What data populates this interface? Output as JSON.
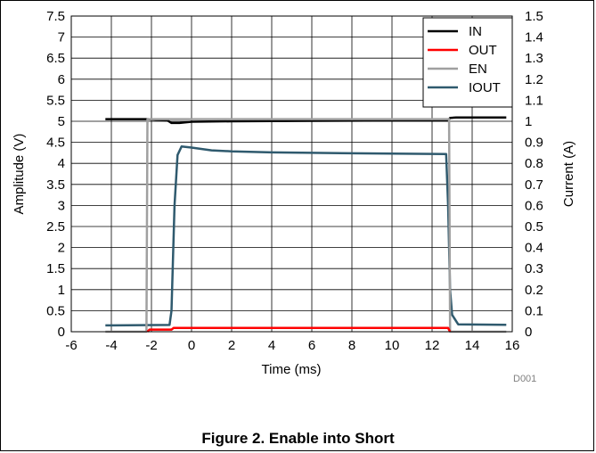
{
  "caption": "Figure 2. Enable into Short",
  "chart_data": {
    "type": "line",
    "figure_id": "D001",
    "xlabel": "Time (ms)",
    "ylabel_left": "Amplitude (V)",
    "ylabel_right": "Current (A)",
    "xlim": [
      -6,
      16
    ],
    "ylim_left": [
      0,
      7.5
    ],
    "ylim_right": [
      0,
      1.5
    ],
    "x_ticks": [
      "-6",
      "-4",
      "-2",
      "0",
      "2",
      "4",
      "6",
      "8",
      "10",
      "12",
      "14",
      "16"
    ],
    "y_left_ticks": [
      "0",
      "0.5",
      "1",
      "1.5",
      "2",
      "2.5",
      "3",
      "3.5",
      "4",
      "4.5",
      "5",
      "5.5",
      "6",
      "6.5",
      "7",
      "7.5"
    ],
    "y_right_ticks": [
      "0",
      "0.1",
      "0.2",
      "0.3",
      "0.4",
      "0.5",
      "0.6",
      "0.7",
      "0.8",
      "0.9",
      "1",
      "1.1",
      "1.2",
      "1.3",
      "1.4",
      "1.5"
    ],
    "grid": true,
    "legend_position": "top-right",
    "series": [
      {
        "name": "IN",
        "color": "#000000",
        "axis": "left",
        "x": [
          -4.3,
          -2.2,
          -1.2,
          -1.0,
          -0.6,
          0,
          2,
          6,
          10,
          12.8,
          12.9,
          13.2,
          15.7
        ],
        "y": [
          5.05,
          5.05,
          5.02,
          4.96,
          4.96,
          4.99,
          5.0,
          5.01,
          5.02,
          5.02,
          5.08,
          5.09,
          5.09
        ]
      },
      {
        "name": "OUT",
        "color": "#ff0000",
        "axis": "left",
        "x": [
          -2.2,
          -2.1,
          -1.0,
          -0.9,
          12.8,
          12.9
        ],
        "y": [
          0,
          0.05,
          0.05,
          0.09,
          0.09,
          0
        ]
      },
      {
        "name": "EN",
        "color": "#a0a0a0",
        "axis": "left",
        "x": [
          -4.3,
          -2.25,
          -2.2,
          -2.15,
          12.8,
          12.85,
          12.9,
          15.7
        ],
        "y": [
          0,
          0,
          5.05,
          5.05,
          5.05,
          5.05,
          0,
          0
        ]
      },
      {
        "name": "IOUT",
        "color": "#2f5a6e",
        "axis": "right",
        "x": [
          -4.3,
          -1.1,
          -1.0,
          -0.85,
          -0.7,
          -0.5,
          0,
          1,
          2,
          4,
          6,
          8,
          10,
          12,
          12.7,
          12.8,
          12.9,
          13.0,
          13.3,
          15.7
        ],
        "y": [
          0.03,
          0.032,
          0.1,
          0.6,
          0.84,
          0.88,
          0.875,
          0.862,
          0.857,
          0.852,
          0.85,
          0.848,
          0.846,
          0.845,
          0.844,
          0.6,
          0.2,
          0.08,
          0.035,
          0.033
        ]
      }
    ]
  }
}
